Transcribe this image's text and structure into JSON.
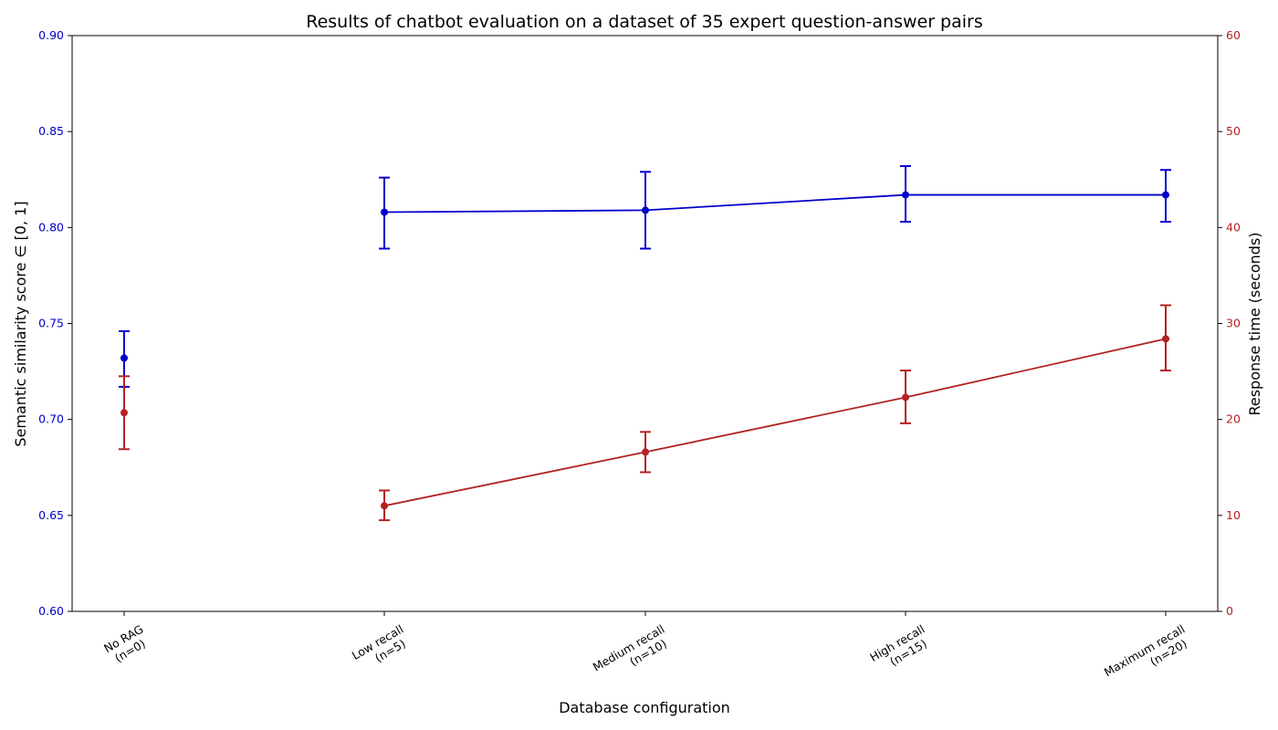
{
  "chart_data": {
    "type": "line",
    "title": "Results of chatbot evaluation on a dataset of 35 expert question-answer pairs",
    "xlabel": "Database configuration",
    "categories": [
      [
        "No RAG",
        "(n=0)"
      ],
      [
        "Low recall",
        "(n=5)"
      ],
      [
        "Medium recall",
        "(n=10)"
      ],
      [
        "High recall",
        "(n=15)"
      ],
      [
        "Maximum recall",
        "(n=20)"
      ]
    ],
    "left_axis": {
      "label": "Semantic similarity score ∈ [0, 1]",
      "ylim": [
        0.6,
        0.9
      ],
      "ticks": [
        "0.60",
        "0.65",
        "0.70",
        "0.75",
        "0.80",
        "0.85",
        "0.90"
      ],
      "color": "#0000cd"
    },
    "right_axis": {
      "label": "Response time (seconds)",
      "ylim": [
        0,
        60
      ],
      "ticks": [
        "0",
        "10",
        "20",
        "30",
        "40",
        "50",
        "60"
      ],
      "color": "#b22222"
    },
    "series": [
      {
        "axis": "left",
        "color": "#0000cd",
        "values": [
          0.732,
          0.808,
          0.809,
          0.817,
          0.817
        ],
        "err_low": [
          0.717,
          0.789,
          0.789,
          0.803,
          0.803
        ],
        "err_high": [
          0.746,
          0.826,
          0.829,
          0.832,
          0.83
        ],
        "connect_from": 1
      },
      {
        "axis": "right",
        "color": "#b22222",
        "values": [
          20.7,
          11.0,
          16.6,
          22.3,
          28.4
        ],
        "err_low": [
          16.9,
          9.5,
          14.5,
          19.6,
          25.1
        ],
        "err_high": [
          24.5,
          12.6,
          18.7,
          25.1,
          31.9
        ],
        "connect_from": 1
      }
    ],
    "grid": false,
    "legend": "none"
  }
}
